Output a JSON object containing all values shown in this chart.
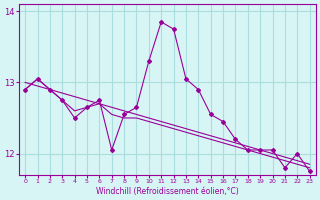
{
  "x": [
    0,
    1,
    2,
    3,
    4,
    5,
    6,
    7,
    8,
    9,
    10,
    11,
    12,
    13,
    14,
    15,
    16,
    17,
    18,
    19,
    20,
    21,
    22,
    23
  ],
  "y_main": [
    12.9,
    13.05,
    12.9,
    12.75,
    12.5,
    12.65,
    12.75,
    12.05,
    12.55,
    12.65,
    13.3,
    13.85,
    13.75,
    13.05,
    12.9,
    12.55,
    12.45,
    12.2,
    12.05,
    12.05,
    12.05,
    11.8,
    12.0,
    11.75
  ],
  "y_smooth": [
    12.9,
    13.05,
    12.9,
    12.75,
    12.6,
    12.65,
    12.7,
    12.55,
    12.5,
    12.5,
    12.45,
    12.4,
    12.35,
    12.3,
    12.25,
    12.2,
    12.15,
    12.1,
    12.05,
    12.0,
    11.95,
    11.9,
    11.85,
    11.8
  ],
  "y_regression": [
    13.0,
    12.95,
    12.9,
    12.85,
    12.8,
    12.75,
    12.7,
    12.65,
    12.6,
    12.55,
    12.5,
    12.45,
    12.4,
    12.35,
    12.3,
    12.25,
    12.2,
    12.15,
    12.1,
    12.05,
    12.0,
    11.95,
    11.9,
    11.85
  ],
  "color": "#990099",
  "bg_color": "#d8f5f5",
  "grid_color": "#aadddd",
  "ylim": [
    11.7,
    14.1
  ],
  "yticks": [
    12,
    13,
    14
  ],
  "xlabel": "Windchill (Refroidissement éolien,°C)"
}
